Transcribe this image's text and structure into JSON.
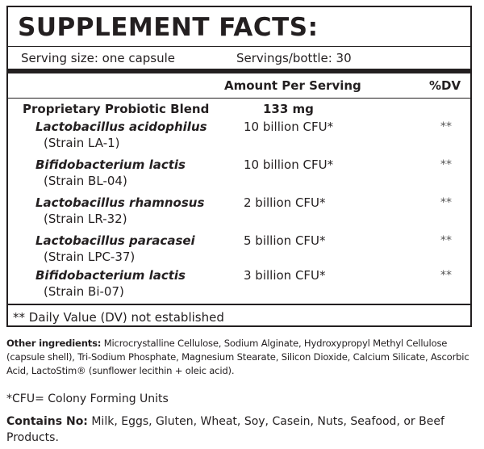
{
  "title": "SUPPLEMENT FACTS:",
  "serving": {
    "size": "Serving size: one capsule",
    "per_container": "Servings/bottle: 30"
  },
  "header": {
    "amount": "Amount Per Serving",
    "dv": "%DV"
  },
  "blend": {
    "name": "Proprietary Probiotic Blend",
    "amount": "133 mg"
  },
  "strains": [
    {
      "name": "Lactobacillus acidophilus",
      "code": "(Strain LA-1)",
      "amount": "10 billion CFU*",
      "dv": "**"
    },
    {
      "name": "Bifidobacterium lactis",
      "code": "(Strain BL-04)",
      "amount": "10 billion CFU*",
      "dv": "**"
    },
    {
      "name": "Lactobacillus rhamnosus",
      "code": "(Strain LR-32)",
      "amount": "2 billion CFU*",
      "dv": "**"
    },
    {
      "name": "Lactobacillus paracasei",
      "code": "(Strain LPC-37)",
      "amount": "5 billion CFU*",
      "dv": "**"
    },
    {
      "name": "Bifidobacterium lactis",
      "code": "(Strain Bi-07)",
      "amount": "3 billion CFU*",
      "dv": "**"
    }
  ],
  "footnote": "** Daily Value (DV) not established",
  "other_ingredients": {
    "label": "Other ingredients:",
    "text": " Microcrystalline Cellulose, Sodium Alginate, Hydroxypropyl Methyl Cellulose (capsule shell), Tri-Sodium Phosphate, Magnesium Stearate, Silicon Dioxide, Calcium Silicate, Ascorbic Acid, LactoStim® (sunflower lecithin + oleic acid)."
  },
  "cfu_note": "*CFU= Colony Forming Units",
  "contains": {
    "label": "Contains No:",
    "text": " Milk, Eggs, Gluten, Wheat, Soy, Casein, Nuts, Seafood, or Beef Products."
  }
}
